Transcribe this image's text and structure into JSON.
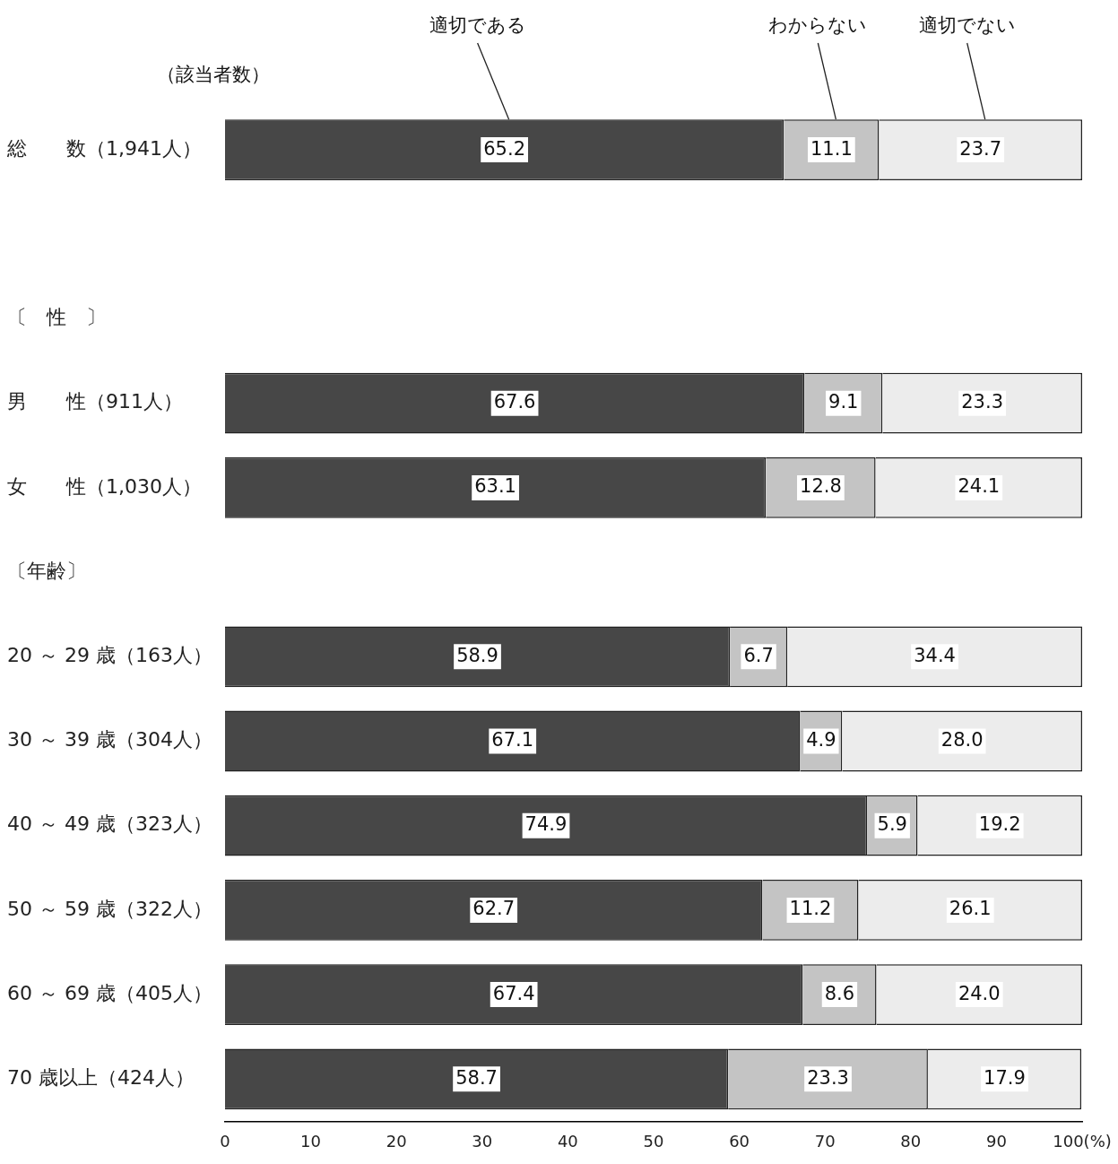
{
  "chart_data": {
    "type": "bar",
    "orientation": "horizontal",
    "stacked": true,
    "categories": [
      "総　　数（1,941人）",
      null,
      "〔　性　〕",
      "男　　性（911人）",
      "女　　性（1,030人）",
      "〔年齢〕",
      "20 ～ 29 歳（163人）",
      "30 ～ 39 歳（304人）",
      "40 ～ 49 歳（323人）",
      "50 ～ 59 歳（322人）",
      "60 ～ 69 歳（405人）",
      "70 歳以上（424人）"
    ],
    "series": [
      {
        "name": "適切である",
        "color": "#474747",
        "values": [
          65.2,
          null,
          null,
          67.6,
          63.1,
          null,
          58.9,
          67.1,
          74.9,
          62.7,
          67.4,
          58.7
        ],
        "value_labels": [
          "65.2",
          null,
          null,
          "67.6",
          "63.1",
          null,
          "58.9",
          "67.1",
          "74.9",
          "62.7",
          "67.4",
          "58.7"
        ]
      },
      {
        "name": "わからない",
        "color": "#c4c4c4",
        "values": [
          11.1,
          null,
          null,
          9.1,
          12.8,
          null,
          6.7,
          4.9,
          5.9,
          11.2,
          8.6,
          23.3
        ],
        "value_labels": [
          "11.1",
          null,
          null,
          "9.1",
          "12.8",
          null,
          "6.7",
          "4.9",
          "5.9",
          "11.2",
          "8.6",
          "23.3"
        ]
      },
      {
        "name": "適切でない",
        "color": "#ececec",
        "values": [
          23.7,
          null,
          null,
          23.3,
          24.1,
          null,
          34.4,
          28.0,
          19.2,
          26.1,
          24.0,
          17.9
        ],
        "value_labels": [
          "23.7",
          null,
          null,
          "23.3",
          "24.1",
          null,
          "34.4",
          "28.0",
          "19.2",
          "26.1",
          "24.0",
          "17.9"
        ]
      }
    ],
    "xlim": [
      0,
      100
    ],
    "xticks": [
      0,
      10,
      20,
      30,
      40,
      50,
      60,
      70,
      80,
      90,
      {
        "value": 100,
        "label": "100(%)"
      }
    ],
    "grid": false,
    "annotations": [
      "（該当者数）"
    ]
  }
}
